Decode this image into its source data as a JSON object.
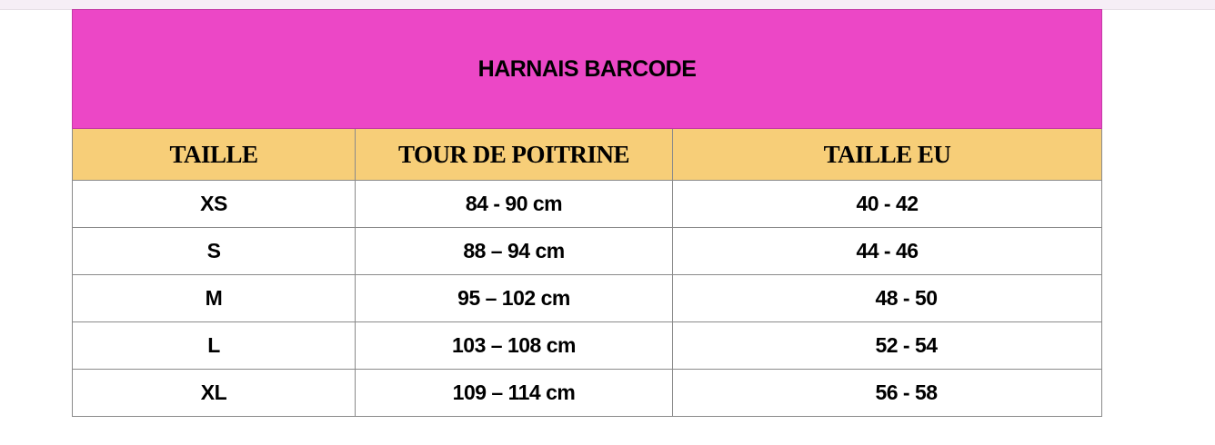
{
  "title": "HARNAIS BARCODE",
  "colors": {
    "title_bg": "#ec47c6",
    "header_bg": "#f7ce78"
  },
  "columns": [
    "TAILLE",
    "TOUR DE POITRINE",
    "TAILLE EU"
  ],
  "rows": [
    [
      "XS",
      "84 - 90 cm",
      "40 - 42"
    ],
    [
      "S",
      "88 – 94 cm",
      "44 - 46"
    ],
    [
      "M",
      "95 – 102 cm",
      "48 - 50"
    ],
    [
      "L",
      "103 – 108 cm",
      "52 - 54"
    ],
    [
      "XL",
      "109 – 114 cm",
      "56 - 58"
    ]
  ]
}
